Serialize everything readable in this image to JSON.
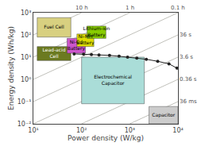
{
  "chart_data": {
    "type": "line",
    "xlabel": "Power density (W/kg)",
    "ylabel": "Energy density (Wh/kg)",
    "log": true,
    "grid": false,
    "xlim": [
      10,
      10000
    ],
    "ylim": [
      0.01,
      1000
    ],
    "xticks": [
      {
        "value": 10,
        "label": "10¹"
      },
      {
        "value": 100,
        "label": "10²"
      },
      {
        "value": 1000,
        "label": "10³"
      },
      {
        "value": 10000,
        "label": "10⁴"
      }
    ],
    "yticks": [
      {
        "value": 0.01,
        "label": "10⁻²"
      },
      {
        "value": 0.1,
        "label": "10⁻¹"
      },
      {
        "value": 1,
        "label": "10⁰"
      },
      {
        "value": 10,
        "label": "10¹"
      },
      {
        "value": 100,
        "label": "10²"
      },
      {
        "value": 1000,
        "label": "10³"
      }
    ],
    "x": [
      70,
      110,
      160,
      230,
      380,
      600,
      900,
      1400,
      2200,
      3800,
      6500,
      9500
    ],
    "values": [
      14,
      13.5,
      13,
      12.5,
      12,
      11,
      10,
      9,
      8,
      6.5,
      5,
      3.2
    ],
    "color": "#222222",
    "marker": "circle",
    "iso_lines": [
      {
        "label": "10 h",
        "x": [
          10,
          100
        ],
        "values": [
          100,
          1000
        ],
        "color": "#b0b0a8"
      },
      {
        "label": "1 h",
        "x": [
          10,
          1000
        ],
        "values": [
          10,
          1000
        ],
        "color": "#b0b0a8"
      },
      {
        "label": "0.1 h",
        "x": [
          10,
          10000
        ],
        "values": [
          1,
          1000
        ],
        "color": "#b0b0a8"
      },
      {
        "label": "36 s",
        "x": [
          10,
          10000
        ],
        "values": [
          0.1,
          100
        ],
        "color": "#b0b0a8"
      },
      {
        "label": "3.6 s",
        "x": [
          10,
          10000
        ],
        "values": [
          0.01,
          10
        ],
        "color": "#b0b0a8"
      },
      {
        "label": "0.36 s",
        "x": [
          100,
          10000
        ],
        "values": [
          0.01,
          1
        ],
        "color": "#b0b0a8"
      },
      {
        "label": "36 ms",
        "x": [
          1000,
          10000
        ],
        "values": [
          0.01,
          0.1
        ],
        "color": "#b0b0a8"
      }
    ],
    "boxes": [
      {
        "label": "Fuel Cell",
        "x0": 12,
        "y0": 80,
        "x1": 60,
        "y1": 600,
        "color": "#d8d080"
      },
      {
        "label": "Lead-acid\nCell",
        "x0": 12,
        "y0": 7,
        "x1": 60,
        "y1": 30,
        "color": "#6b7a20"
      },
      {
        "label": "Ni-Cd\nBattery",
        "x0": 50,
        "y0": 15,
        "x1": 120,
        "y1": 70,
        "color": "#cc55cc"
      },
      {
        "label": "Ni-MH\nBattery",
        "x0": 80,
        "y0": 30,
        "x1": 180,
        "y1": 110,
        "color": "#dddd00"
      },
      {
        "label": "Lithium-ion\nBattery",
        "x0": 130,
        "y0": 70,
        "x1": 320,
        "y1": 250,
        "color": "#88cc00"
      },
      {
        "label": "Electrochemical\nCapacitor",
        "x0": 100,
        "y0": 0.08,
        "x1": 2000,
        "y1": 10,
        "color": "#aaddd8"
      },
      {
        "label": "Capacitor",
        "x0": 2500,
        "y0": 0.01,
        "x1": 10000,
        "y1": 0.06,
        "color": "#cccccc"
      }
    ]
  }
}
